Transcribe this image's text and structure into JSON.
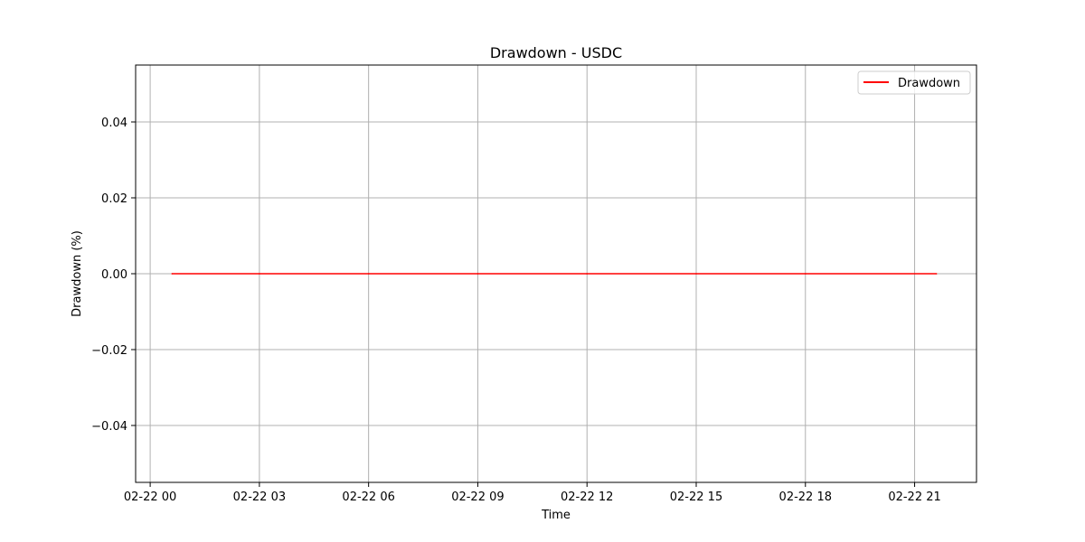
{
  "chart_data": {
    "type": "line",
    "title": "Drawdown - USDC",
    "xlabel": "Time",
    "ylabel": "Drawdown (%)",
    "x_ticks": [
      "02-22 00",
      "02-22 03",
      "02-22 06",
      "02-22 09",
      "02-22 12",
      "02-22 15",
      "02-22 18",
      "02-22 21"
    ],
    "x_tick_hours": [
      0,
      3,
      6,
      9,
      12,
      15,
      18,
      21
    ],
    "xlim_hours": [
      -0.4,
      22.7
    ],
    "y_ticks": [
      -0.04,
      -0.02,
      0.0,
      0.02,
      0.04
    ],
    "y_tick_labels": [
      "−0.04",
      "−0.02",
      "0.00",
      "0.02",
      "0.04"
    ],
    "ylim": [
      -0.055,
      0.055
    ],
    "grid": true,
    "legend_position": "top-right",
    "series": [
      {
        "name": "Drawdown",
        "color": "#ff0000",
        "x_hours": [
          0.6,
          3,
          6,
          9,
          12,
          15,
          18,
          21.6
        ],
        "values": [
          0,
          0,
          0,
          0,
          0,
          0,
          0,
          0
        ]
      }
    ]
  },
  "colors": {
    "grid": "#b0b0b0",
    "axes": "#000000"
  }
}
